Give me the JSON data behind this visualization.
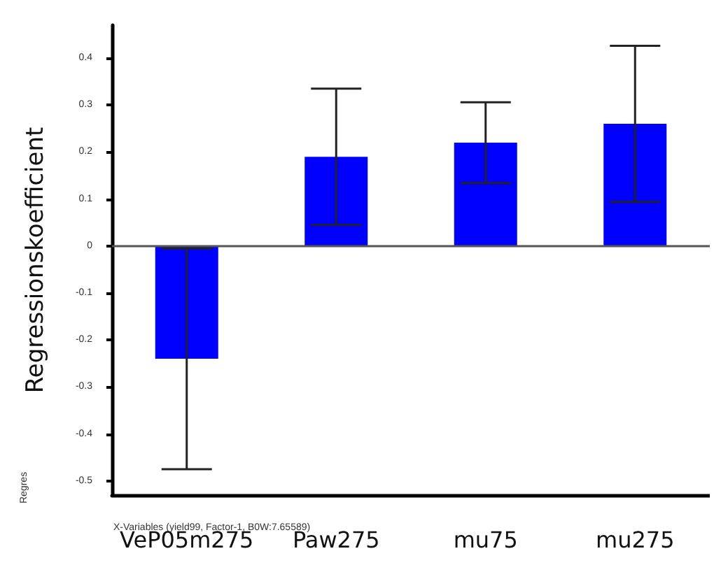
{
  "chart_data": {
    "type": "bar",
    "ylabel": "Regressionskoefficient",
    "categories": [
      "VeP05m275",
      "Paw275",
      "mu75",
      "mu275"
    ],
    "values": [
      -0.24,
      0.19,
      0.22,
      0.26
    ],
    "errors": [
      0.235,
      0.145,
      0.086,
      0.166
    ],
    "color": "#0000ff",
    "ylim": [
      -0.53,
      0.47
    ],
    "yticks": [
      -0.5,
      -0.4,
      -0.3,
      -0.2,
      -0.1,
      0,
      0.1,
      0.2,
      0.3,
      0.4
    ],
    "ref_lines": [
      {
        "axis": "y",
        "value": 0,
        "color": "#555555"
      }
    ],
    "annotations": [
      "X-Variables (yield99, Factor-1, B0W:7.65589)",
      "Regres"
    ],
    "grid": false
  }
}
